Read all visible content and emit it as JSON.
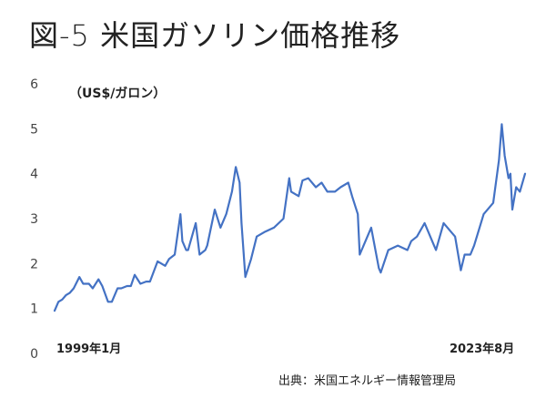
{
  "title": "図-5 米国ガソリン価格推移",
  "source": "出典：米国エネルギー情報管理局",
  "chart_data": {
    "type": "line",
    "title": "図-5 米国ガソリン価格推移",
    "unit_label": "（US$/ガロン）",
    "x_start_label": "1999年1月",
    "x_end_label": "2023年8月",
    "x_range": [
      1999.0,
      2023.67
    ],
    "ylim": [
      0,
      6
    ],
    "yticks": [
      "0",
      "1",
      "2",
      "3",
      "4",
      "5",
      "6"
    ],
    "grid": false,
    "line_color": "#4472c4",
    "series": [
      {
        "x": [
          1999.0,
          1999.2,
          1999.4,
          1999.6,
          1999.8,
          2000.0,
          2000.3,
          2000.5,
          2000.8,
          2001.0,
          2001.3,
          2001.5,
          2001.8,
          2002.0,
          2002.3,
          2002.5,
          2002.8,
          2003.0,
          2003.2,
          2003.5,
          2003.8,
          2004.0,
          2004.4,
          2004.8,
          2005.0,
          2005.3,
          2005.6,
          2005.7,
          2005.9,
          2006.0,
          2006.4,
          2006.6,
          2006.9,
          2007.0,
          2007.4,
          2007.7,
          2008.0,
          2008.3,
          2008.5,
          2008.7,
          2008.8,
          2009.0,
          2009.3,
          2009.6,
          2010.0,
          2010.5,
          2011.0,
          2011.3,
          2011.4,
          2011.8,
          2012.0,
          2012.3,
          2012.7,
          2013.0,
          2013.3,
          2013.7,
          2014.0,
          2014.4,
          2014.6,
          2014.9,
          2015.0,
          2015.3,
          2015.6,
          2016.0,
          2016.1,
          2016.5,
          2017.0,
          2017.5,
          2017.7,
          2018.0,
          2018.4,
          2018.9,
          2019.0,
          2019.4,
          2019.8,
          2020.0,
          2020.3,
          2020.5,
          2020.8,
          2021.0,
          2021.5,
          2021.9,
          2022.0,
          2022.3,
          2022.45,
          2022.6,
          2022.8,
          2022.9,
          2023.0,
          2023.2,
          2023.4,
          2023.67
        ],
        "values": [
          0.95,
          1.15,
          1.2,
          1.3,
          1.35,
          1.45,
          1.7,
          1.55,
          1.55,
          1.45,
          1.65,
          1.5,
          1.15,
          1.15,
          1.45,
          1.45,
          1.5,
          1.5,
          1.75,
          1.55,
          1.6,
          1.6,
          2.05,
          1.95,
          2.1,
          2.2,
          3.1,
          2.5,
          2.3,
          2.3,
          2.9,
          2.2,
          2.3,
          2.4,
          3.2,
          2.8,
          3.1,
          3.6,
          4.15,
          3.8,
          2.9,
          1.7,
          2.1,
          2.6,
          2.7,
          2.8,
          3.0,
          3.9,
          3.6,
          3.5,
          3.85,
          3.9,
          3.7,
          3.8,
          3.6,
          3.6,
          3.7,
          3.8,
          3.5,
          3.1,
          2.2,
          2.5,
          2.8,
          1.9,
          1.8,
          2.3,
          2.4,
          2.3,
          2.5,
          2.6,
          2.9,
          2.4,
          2.3,
          2.9,
          2.7,
          2.6,
          1.85,
          2.2,
          2.2,
          2.4,
          3.1,
          3.3,
          3.35,
          4.3,
          5.1,
          4.4,
          3.9,
          4.0,
          3.2,
          3.7,
          3.6,
          4.0
        ]
      }
    ]
  }
}
